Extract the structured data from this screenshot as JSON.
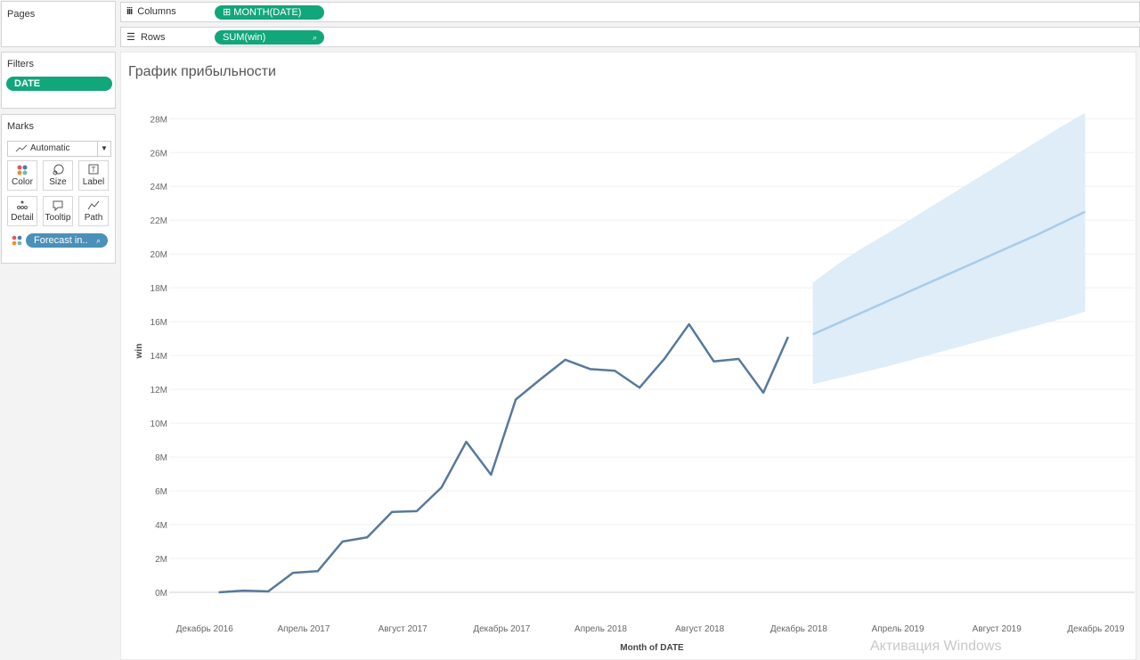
{
  "ui": {
    "pages_label": "Pages",
    "columns_label": "Columns",
    "columns_pill": "MONTH(DATE)",
    "rows_label": "Rows",
    "rows_pill": "SUM(win)",
    "filters_label": "Filters",
    "filter_pill": "DATE",
    "marks_label": "Marks",
    "mark_type": "Automatic",
    "mark_buttons": [
      "Color",
      "Size",
      "Label",
      "Detail",
      "Tooltip",
      "Path"
    ],
    "marks_pill": "Forecast in..",
    "watermark": "Активация Windows"
  },
  "chart_data": {
    "type": "line",
    "title": "График прибыльности",
    "x_label": "Month of DATE",
    "y_label": "win",
    "x": [
      "2017-01",
      "2017-02",
      "2017-03",
      "2017-04",
      "2017-05",
      "2017-06",
      "2017-07",
      "2017-08",
      "2017-09",
      "2017-10",
      "2017-11",
      "2017-12",
      "2018-01",
      "2018-02",
      "2018-03",
      "2018-04",
      "2018-05",
      "2018-06",
      "2018-07",
      "2018-08",
      "2018-09",
      "2018-10",
      "2018-11",
      "2018-12"
    ],
    "values": [
      0,
      100000,
      50000,
      1150000,
      1250000,
      3000000,
      3250000,
      4750000,
      4800000,
      6200000,
      8900000,
      6950000,
      11400000,
      12600000,
      13750000,
      13200000,
      13100000,
      12100000,
      13800000,
      15850000,
      13650000,
      13800000,
      11800000,
      15100000
    ],
    "color": "#57799c",
    "forecast": {
      "x": [
        "2019-01",
        "2019-02",
        "2019-03",
        "2019-04",
        "2019-05",
        "2019-06",
        "2019-07",
        "2019-08",
        "2019-09",
        "2019-10",
        "2019-11",
        "2019-12"
      ],
      "values": [
        15250000,
        15900000,
        16550000,
        17200000,
        17850000,
        18500000,
        19150000,
        19800000,
        20450000,
        21100000,
        21800000,
        22500000
      ],
      "lower": [
        12300000,
        12650000,
        13000000,
        13350000,
        13750000,
        14150000,
        14550000,
        14950000,
        15350000,
        15750000,
        16150000,
        16600000
      ],
      "upper": [
        18300000,
        19400000,
        20350000,
        21200000,
        22100000,
        23000000,
        23900000,
        24800000,
        25700000,
        26600000,
        27500000,
        28350000
      ],
      "color": "#a8cce8",
      "band_color": "#deedf8"
    },
    "xlim": [
      "2016-11",
      "2020-02"
    ],
    "xticks": [
      {
        "value": "2016-12",
        "label": "Декабрь 2016"
      },
      {
        "value": "2017-04",
        "label": "Апрель 2017"
      },
      {
        "value": "2017-08",
        "label": "Август 2017"
      },
      {
        "value": "2017-12",
        "label": "Декабрь 2017"
      },
      {
        "value": "2018-04",
        "label": "Апрель 2018"
      },
      {
        "value": "2018-08",
        "label": "Август 2018"
      },
      {
        "value": "2018-12",
        "label": "Декабрь 2018"
      },
      {
        "value": "2019-04",
        "label": "Апрель 2019"
      },
      {
        "value": "2019-08",
        "label": "Август 2019"
      },
      {
        "value": "2019-12",
        "label": "Декабрь 2019"
      }
    ],
    "ylim": [
      -1000000,
      29700000
    ],
    "yticks": [
      {
        "value": 0,
        "label": "0M"
      },
      {
        "value": 2000000,
        "label": "2M"
      },
      {
        "value": 4000000,
        "label": "4M"
      },
      {
        "value": 6000000,
        "label": "6M"
      },
      {
        "value": 8000000,
        "label": "8M"
      },
      {
        "value": 10000000,
        "label": "10M"
      },
      {
        "value": 12000000,
        "label": "12M"
      },
      {
        "value": 14000000,
        "label": "14M"
      },
      {
        "value": 16000000,
        "label": "16M"
      },
      {
        "value": 18000000,
        "label": "18M"
      },
      {
        "value": 20000000,
        "label": "20M"
      },
      {
        "value": 22000000,
        "label": "22M"
      },
      {
        "value": 24000000,
        "label": "24M"
      },
      {
        "value": 26000000,
        "label": "26M"
      },
      {
        "value": 28000000,
        "label": "28M"
      }
    ],
    "grid": true
  }
}
